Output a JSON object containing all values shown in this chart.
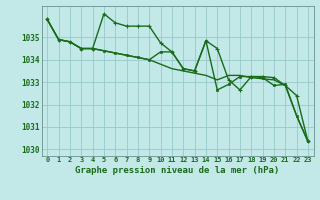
{
  "background_color": "#c2e8e8",
  "grid_color": "#96c8c8",
  "line_color": "#1a6b1a",
  "xlabel": "Graphe pression niveau de la mer (hPa)",
  "ylim": [
    1029.7,
    1036.4
  ],
  "xlim": [
    -0.5,
    23.5
  ],
  "yticks": [
    1030,
    1031,
    1032,
    1033,
    1034,
    1035
  ],
  "xtick_labels": [
    "0",
    "1",
    "2",
    "3",
    "4",
    "5",
    "6",
    "7",
    "8",
    "9",
    "10",
    "11",
    "12",
    "13",
    "14",
    "15",
    "16",
    "17",
    "18",
    "19",
    "20",
    "21",
    "22",
    "23"
  ],
  "series": [
    {
      "y": [
        1035.8,
        1034.9,
        1034.8,
        1034.5,
        1034.5,
        1034.4,
        1034.3,
        1034.2,
        1034.1,
        1034.0,
        1033.8,
        1033.6,
        1033.5,
        1033.4,
        1033.3,
        1033.1,
        1033.3,
        1033.3,
        1033.2,
        1033.15,
        1033.1,
        1032.85,
        1031.5,
        1030.35
      ],
      "marker": null,
      "lw": 1.0
    },
    {
      "y": [
        1035.8,
        1034.9,
        1034.8,
        1034.5,
        1034.5,
        1036.05,
        1035.65,
        1035.5,
        1035.5,
        1035.5,
        1034.75,
        1034.35,
        1033.6,
        1033.5,
        1034.85,
        1034.5,
        1033.1,
        1032.65,
        1033.25,
        1033.25,
        1033.2,
        1032.85,
        1032.4,
        1030.35
      ],
      "marker": "+",
      "lw": 1.0
    },
    {
      "y": [
        1035.8,
        1034.9,
        1034.8,
        1034.5,
        1034.5,
        1034.4,
        1034.3,
        1034.2,
        1034.1,
        1034.0,
        1034.35,
        1034.35,
        1033.6,
        1033.5,
        1034.85,
        1032.65,
        1032.9,
        1033.25,
        1033.25,
        1033.2,
        1032.85,
        1032.9,
        1031.5,
        1030.35
      ],
      "marker": "s",
      "lw": 1.0
    }
  ]
}
